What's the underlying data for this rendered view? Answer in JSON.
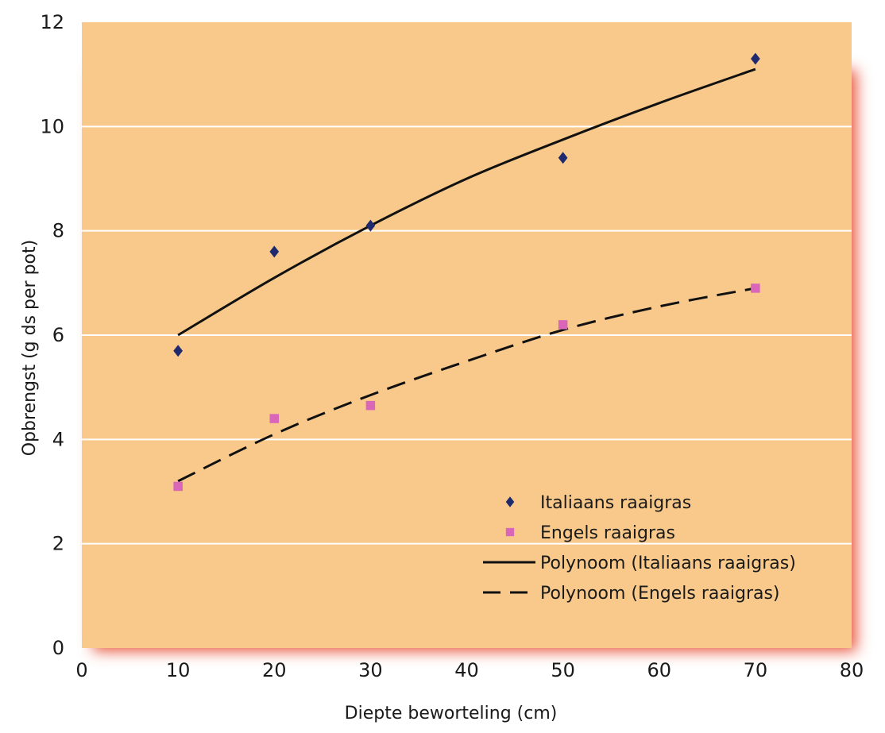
{
  "chart_data": {
    "type": "scatter",
    "title": "",
    "xlabel": "Diepte beworteling (cm)",
    "ylabel": "Opbrengst (g ds per pot)",
    "xlim": [
      0,
      80
    ],
    "ylim": [
      0,
      12
    ],
    "x_ticks": [
      "0",
      "10",
      "20",
      "30",
      "40",
      "50",
      "60",
      "70",
      "80"
    ],
    "y_ticks": [
      "0",
      "2",
      "4",
      "6",
      "8",
      "10",
      "12"
    ],
    "grid": "horizontal",
    "legend_position": "bottom-right",
    "background_color": "#f8c98b",
    "gridline_color": "#ffffff",
    "shadow_color": "#e8553a",
    "series": [
      {
        "name": "Italiaans raaigras",
        "kind": "points",
        "marker": "diamond",
        "color": "#1f2a6e",
        "x": [
          10,
          20,
          30,
          50,
          70
        ],
        "y": [
          5.7,
          7.6,
          8.1,
          9.4,
          11.3
        ]
      },
      {
        "name": "Engels raaigras",
        "kind": "points",
        "marker": "square",
        "color": "#d966b8",
        "x": [
          10,
          20,
          30,
          50,
          70
        ],
        "y": [
          3.1,
          4.4,
          4.65,
          6.2,
          6.9
        ]
      },
      {
        "name": "Polynoom (Italiaans  raaigras)",
        "kind": "trendline",
        "line_style": "solid",
        "color": "#111111",
        "x": [
          10,
          20,
          30,
          40,
          50,
          60,
          70
        ],
        "y": [
          6.0,
          7.1,
          8.1,
          9.0,
          9.75,
          10.45,
          11.1
        ]
      },
      {
        "name": "Polynoom (Engels raaigras)",
        "kind": "trendline",
        "line_style": "dashed",
        "color": "#111111",
        "x": [
          10,
          20,
          30,
          40,
          50,
          60,
          70
        ],
        "y": [
          3.2,
          4.1,
          4.85,
          5.5,
          6.1,
          6.55,
          6.9
        ]
      }
    ]
  }
}
